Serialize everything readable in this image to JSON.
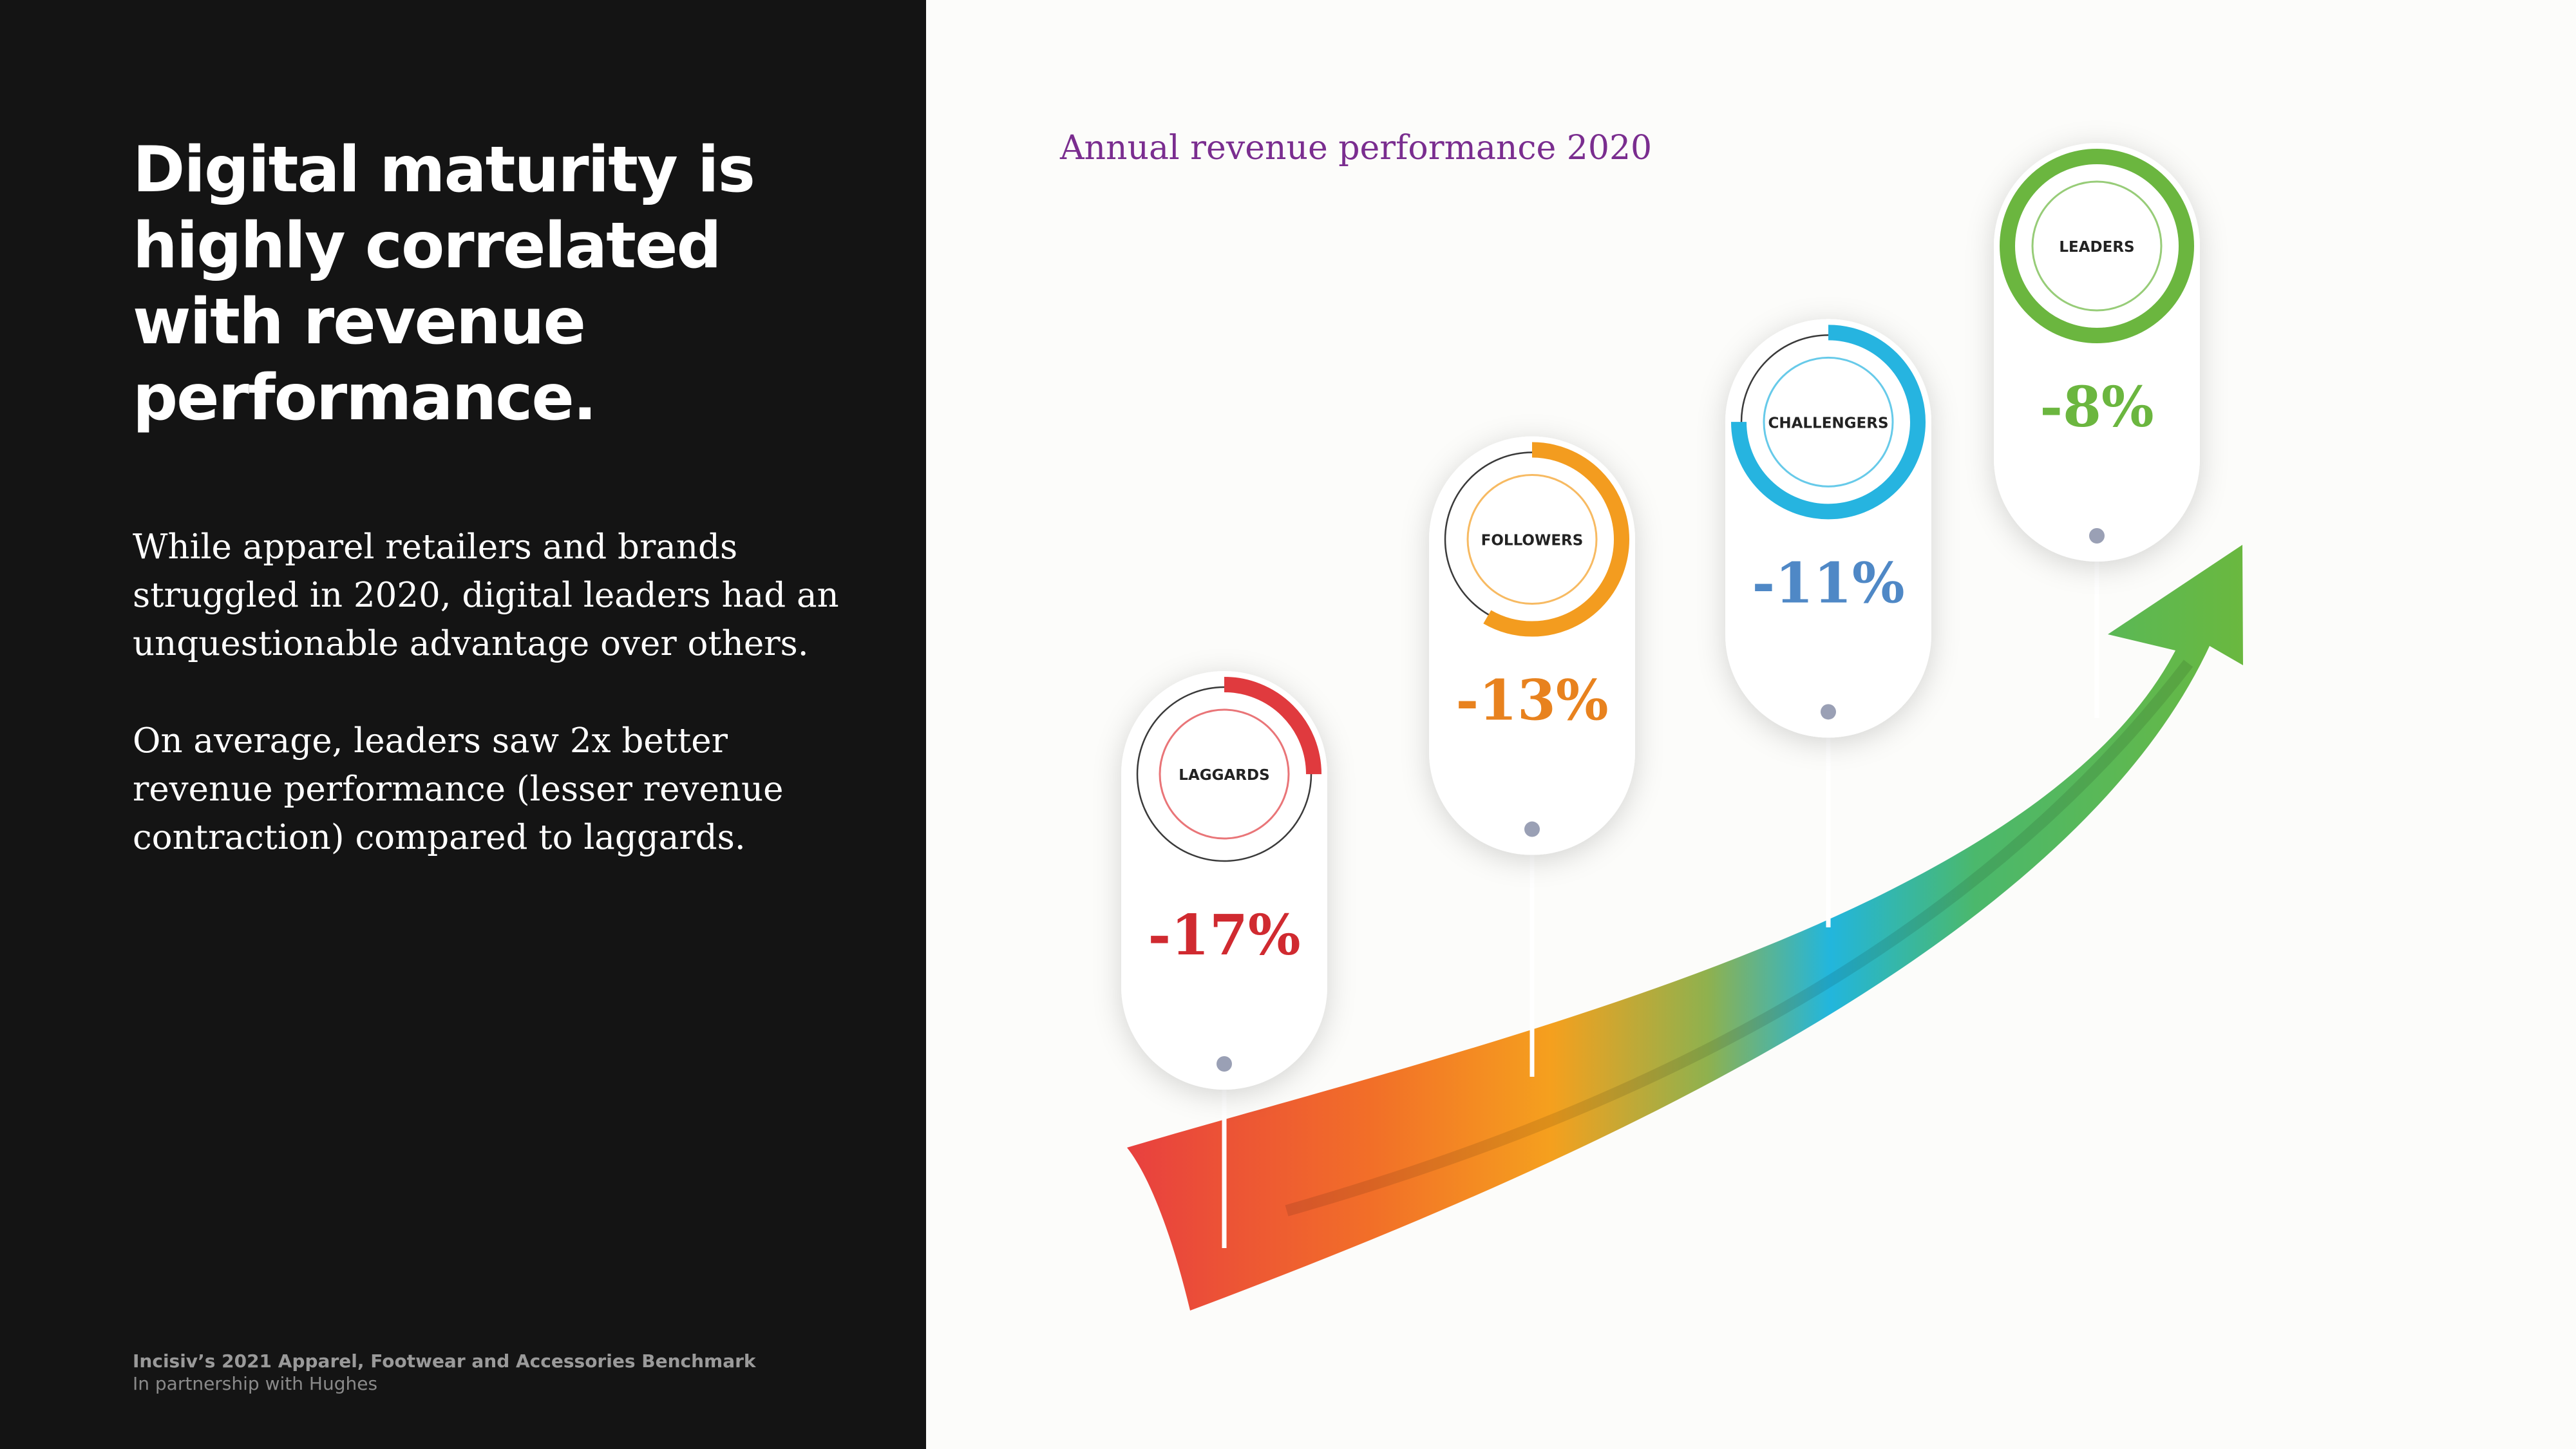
{
  "headline": "Digital maturity is highly correlated with revenue performance.",
  "paragraph1": "While apparel retailers and brands struggled in 2020, digital leaders had an unquestionable advantage over others.",
  "paragraph2": "On average, leaders saw 2x better revenue performance (lesser revenue contraction) compared to laggards.",
  "footer": {
    "title": "Incisiv’s 2021 Apparel, Footwear and Accessories Benchmark",
    "subtitle": "In partnership with Hughes"
  },
  "chart_data": {
    "type": "bar",
    "title": "Annual revenue performance 2020",
    "categories": [
      "LAGGARDS",
      "FOLLOWERS",
      "CHALLENGERS",
      "LEADERS"
    ],
    "values": [
      -17,
      -13,
      -11,
      -8
    ],
    "value_labels": [
      "-17%",
      "-13%",
      "-11%",
      "-8%"
    ],
    "colors": [
      "#e03a3e",
      "#f39c1f",
      "#26b4e0",
      "#6bb63f"
    ],
    "value_colors": [
      "#d02a30",
      "#e8821e",
      "#4f88c6",
      "#6bb63f"
    ],
    "unit": "%"
  }
}
